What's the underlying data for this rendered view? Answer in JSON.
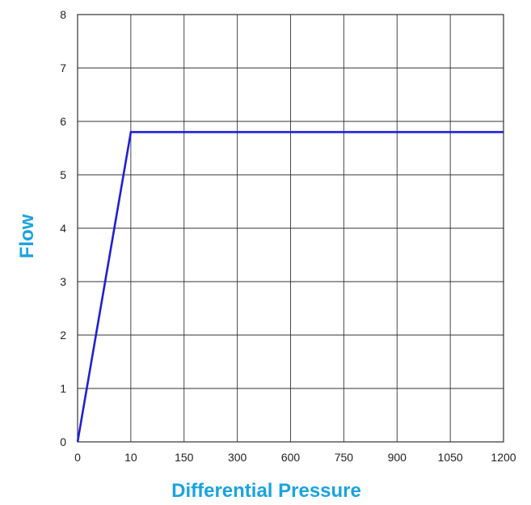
{
  "chart_data": {
    "type": "line",
    "xlabel": "Differential Pressure",
    "ylabel": "Flow",
    "x_tick_labels": [
      "0",
      "10",
      "150",
      "300",
      "600",
      "750",
      "900",
      "1050",
      "1200"
    ],
    "y_tick_labels": [
      "0",
      "1",
      "2",
      "3",
      "4",
      "5",
      "6",
      "7",
      "8"
    ],
    "ylim": [
      0,
      8
    ],
    "grid": true,
    "legend": "none",
    "series": [
      {
        "x": [
          "0",
          "10",
          "1200"
        ],
        "y": [
          0,
          5.8,
          5.8
        ]
      }
    ]
  },
  "colors": {
    "series_line": "#1f1fd6",
    "axis_title": "#1aa3e0",
    "grid": "#333333"
  }
}
